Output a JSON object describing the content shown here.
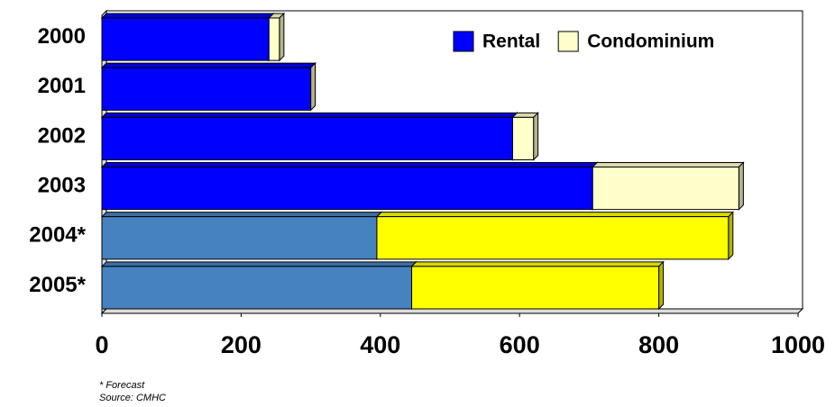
{
  "chart_data": {
    "type": "stacked-bar-3d",
    "orientation": "horizontal",
    "categories": [
      "2000",
      "2001",
      "2002",
      "2003",
      "2004*",
      "2005*"
    ],
    "series": [
      {
        "name": "Rental",
        "color": "#0000ff",
        "point_colors": [
          "#0000ff",
          "#0000ff",
          "#0000ff",
          "#0000ff",
          "#4682c0",
          "#4682c0"
        ],
        "values": [
          240,
          300,
          590,
          705,
          395,
          445
        ]
      },
      {
        "name": "Condominium",
        "color": "#ffffcc",
        "point_colors": [
          "#ffffcc",
          "#ffffcc",
          "#ffffcc",
          "#ffffcc",
          "#ffff00",
          "#ffff00"
        ],
        "values": [
          15,
          0,
          30,
          210,
          505,
          355
        ]
      }
    ],
    "xlim": [
      0,
      1000
    ],
    "xticks": [
      0,
      200,
      400,
      600,
      800,
      1000
    ],
    "legend": "top-right",
    "notes": [
      "* Forecast",
      "Source: CMHC"
    ]
  }
}
